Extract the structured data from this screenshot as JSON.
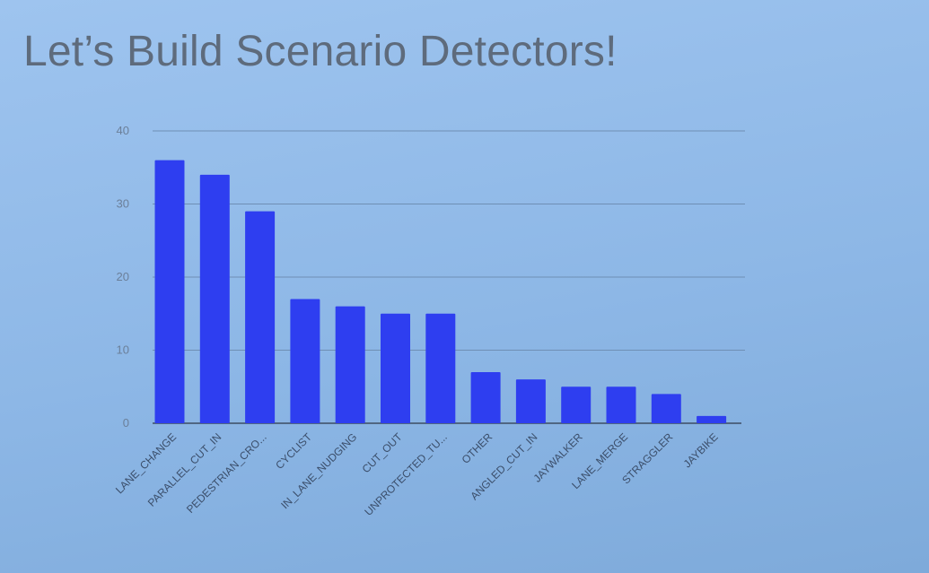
{
  "slide": {
    "title": "Let’s Build Scenario Detectors!"
  },
  "colors": {
    "bar": "#2e3ef0",
    "background": "#8fb7e6"
  },
  "chart_data": {
    "type": "bar",
    "title": "",
    "xlabel": "",
    "ylabel": "",
    "ylim": [
      0,
      40
    ],
    "yticks": [
      0,
      10,
      20,
      30,
      40
    ],
    "grid": true,
    "categories": [
      "LANE_CHANGE",
      "PARALLEL_CUT_IN",
      "PEDESTRIAN_CRO...",
      "CYCLIST",
      "IN_LANE_NUDGING",
      "CUT_OUT",
      "UNPROTECTED_TU...",
      "OTHER",
      "ANGLED_CUT_IN",
      "JAYWALKER",
      "LANE_MERGE",
      "STRAGGLER",
      "JAYBIKE"
    ],
    "values": [
      36,
      34,
      29,
      17,
      16,
      15,
      15,
      7,
      6,
      5,
      5,
      4,
      1
    ]
  }
}
